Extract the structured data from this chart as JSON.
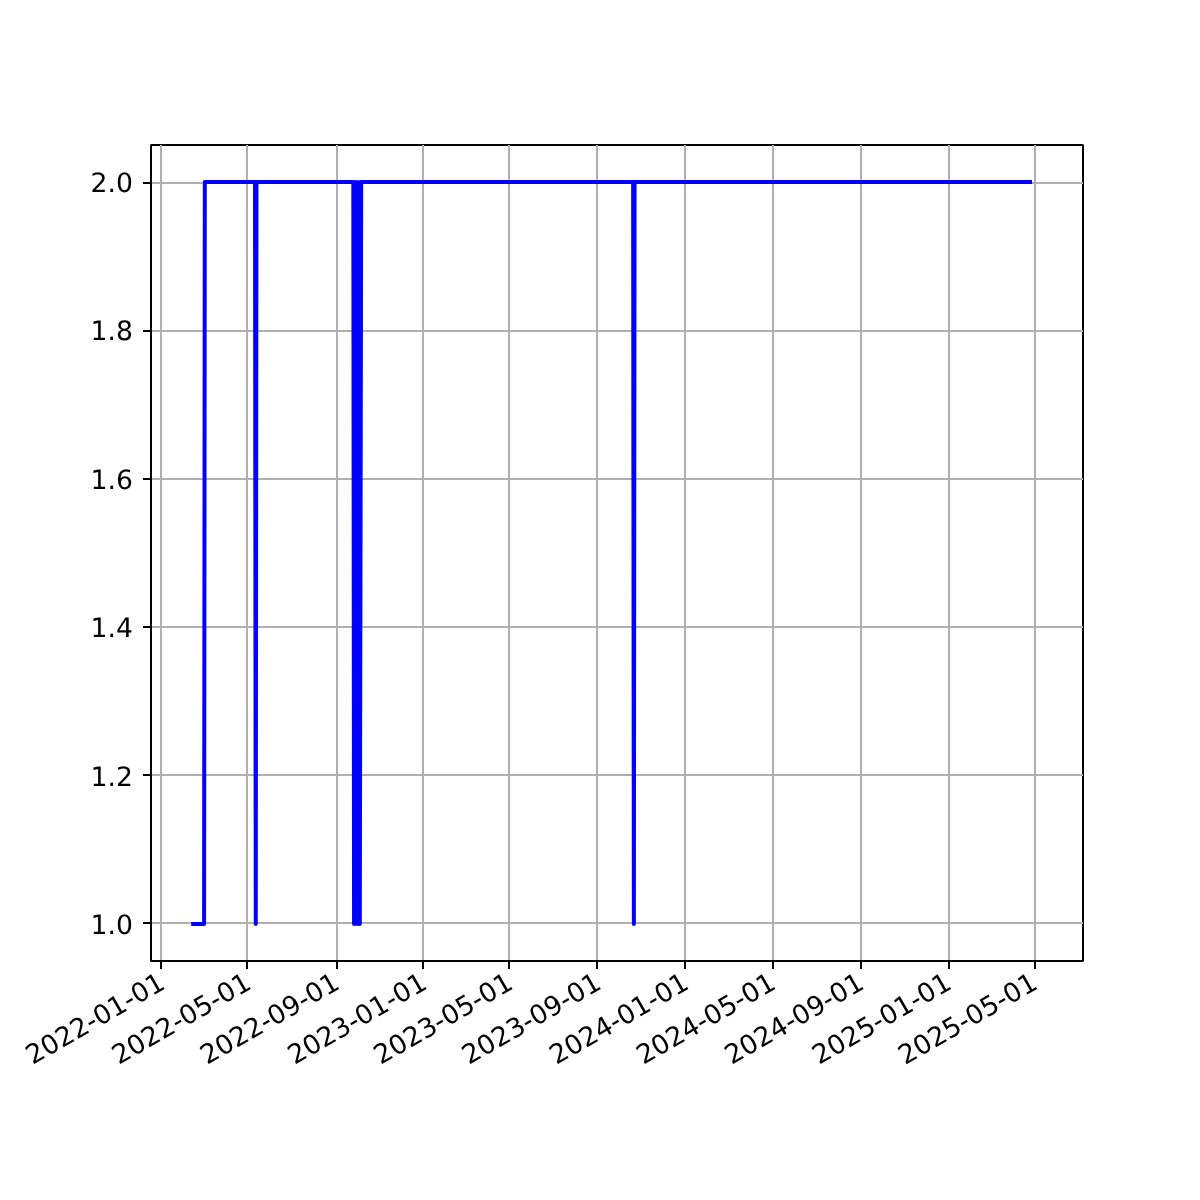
{
  "chart_data": {
    "type": "line",
    "color": "#0000ff",
    "x": [
      "2022-02-11",
      "2022-03-01",
      "2022-03-02",
      "2022-05-11",
      "2022-05-12",
      "2022-05-13",
      "2022-09-25",
      "2022-09-26",
      "2022-09-28",
      "2022-09-30",
      "2022-10-02",
      "2022-10-04",
      "2022-10-06",
      "2023-10-20",
      "2023-10-21",
      "2023-10-22",
      "2025-04-28"
    ],
    "values": [
      1,
      1,
      2,
      2,
      1,
      2,
      2,
      1,
      2,
      1,
      2,
      1,
      2,
      2,
      1,
      2,
      2
    ],
    "xlim": [
      "2021-12-17",
      "2025-07-08"
    ],
    "xticks": [
      "2022-01-01",
      "2022-05-01",
      "2022-09-01",
      "2023-01-01",
      "2023-05-01",
      "2023-09-01",
      "2024-01-01",
      "2024-05-01",
      "2024-09-01",
      "2025-01-01",
      "2025-05-01"
    ],
    "ylim": [
      0.95,
      2.05
    ],
    "yticks": [
      {
        "value": 1,
        "label": "1.0"
      },
      {
        "value": 1.2,
        "label": "1.2"
      },
      {
        "value": 1.4,
        "label": "1.4"
      },
      {
        "value": 1.6,
        "label": "1.6"
      },
      {
        "value": 1.8,
        "label": "1.8"
      },
      {
        "value": 2,
        "label": "2.0"
      }
    ],
    "grid": true
  }
}
